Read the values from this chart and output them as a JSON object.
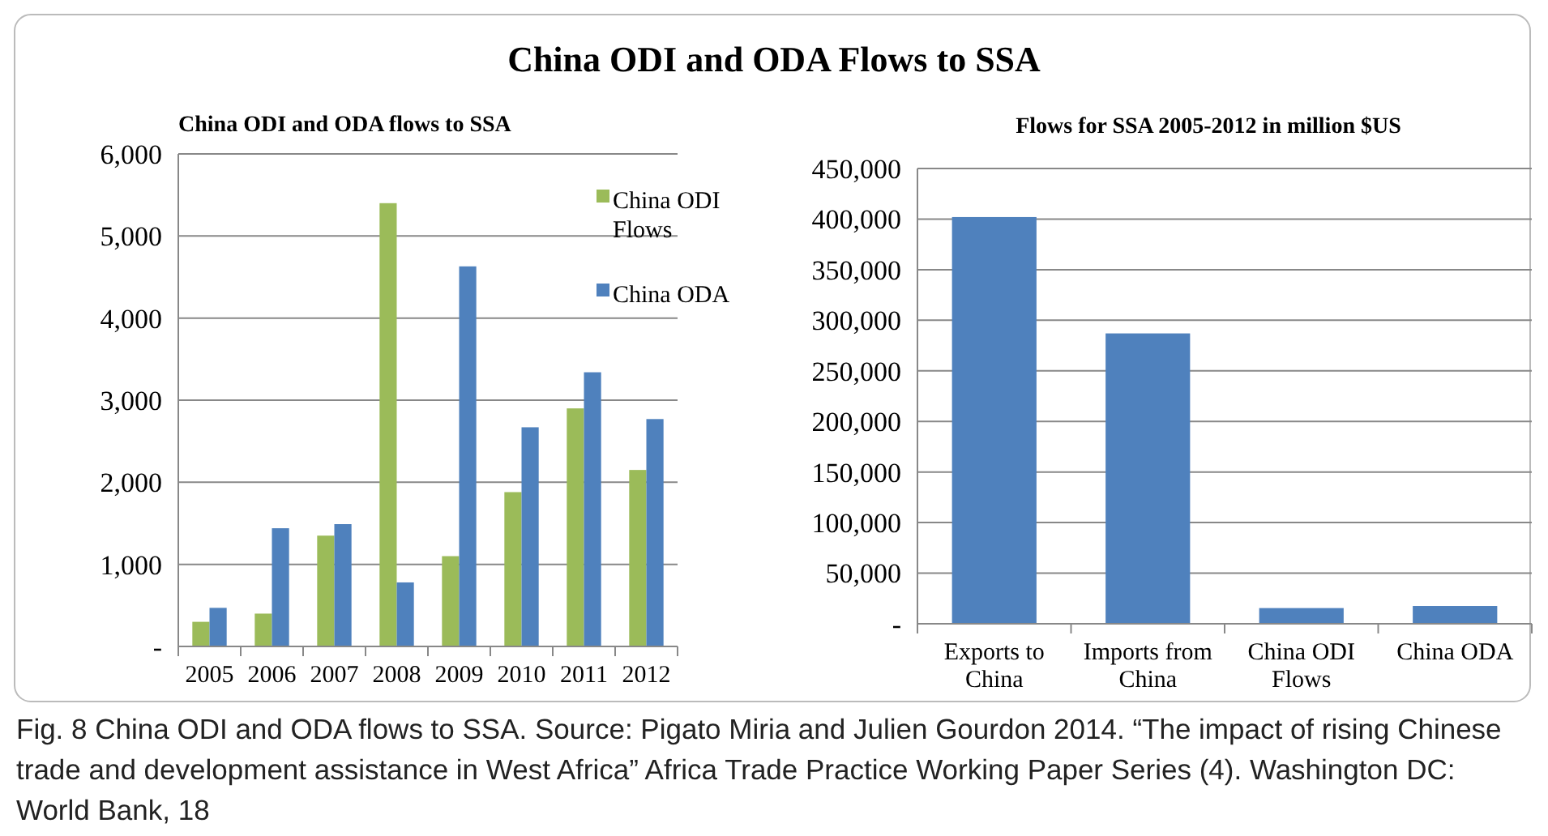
{
  "chart_data": [
    {
      "type": "bar",
      "title": "China ODI and ODA Flows to SSA",
      "subtitle": "China ODI and ODA flows to SSA",
      "categories": [
        "2005",
        "2006",
        "2007",
        "2008",
        "2009",
        "2010",
        "2011",
        "2012"
      ],
      "series": [
        {
          "name": "China ODI Flows",
          "color": "#9bbb59",
          "values": [
            300,
            400,
            1350,
            5400,
            1100,
            1880,
            2900,
            2150
          ]
        },
        {
          "name": "China ODA",
          "color": "#4f81bd",
          "values": [
            470,
            1440,
            1490,
            780,
            4630,
            2670,
            3340,
            2770
          ]
        }
      ],
      "ylim": [
        0,
        6000
      ],
      "yticks": [
        {
          "value": 0,
          "label": "-"
        },
        {
          "value": 1000,
          "label": "1,000"
        },
        {
          "value": 2000,
          "label": "2,000"
        },
        {
          "value": 3000,
          "label": "3,000"
        },
        {
          "value": 4000,
          "label": "4,000"
        },
        {
          "value": 5000,
          "label": "5,000"
        },
        {
          "value": 6000,
          "label": "6,000"
        }
      ],
      "grid": "y",
      "legend": "top right"
    },
    {
      "type": "bar",
      "title": "Flows for SSA 2005-2012 in million $US",
      "categories": [
        "Exports to China",
        "Imports from China",
        "China ODI Flows",
        "China ODA"
      ],
      "series": [
        {
          "color": "#4f81bd",
          "values": [
            402000,
            287000,
            15500,
            17600
          ]
        }
      ],
      "ylim": [
        0,
        450000
      ],
      "yticks": [
        {
          "value": 0,
          "label": "-"
        },
        {
          "value": 50000,
          "label": "50,000"
        },
        {
          "value": 100000,
          "label": "100,000"
        },
        {
          "value": 150000,
          "label": "150,000"
        },
        {
          "value": 200000,
          "label": "200,000"
        },
        {
          "value": 250000,
          "label": "250,000"
        },
        {
          "value": 300000,
          "label": "300,000"
        },
        {
          "value": 350000,
          "label": "350,000"
        },
        {
          "value": 400000,
          "label": "400,000"
        },
        {
          "value": 450000,
          "label": "450,000"
        }
      ],
      "grid": "y",
      "annotations": [
        "Fig. 8  China ODI and ODA flows to SSA. Source: Pigato Miria and Julien Gourdon 2014. “The impact of rising Chinese trade and development assistance in West Africa” Africa Trade Practice Working Paper Series (4). Washington DC: World Bank, 18"
      ]
    }
  ]
}
